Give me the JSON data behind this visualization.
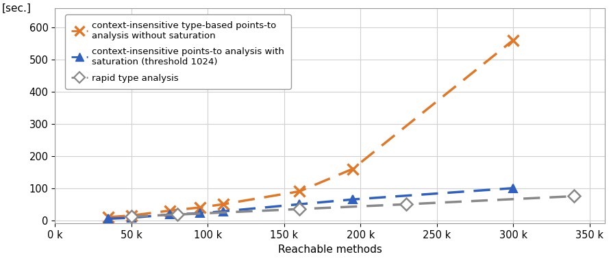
{
  "title": "",
  "xlabel": "Reachable methods",
  "ylabel": "[sec.]",
  "xlim": [
    0,
    360000
  ],
  "ylim": [
    -10,
    660
  ],
  "xticks": [
    0,
    50000,
    100000,
    150000,
    200000,
    250000,
    300000,
    350000
  ],
  "xtick_labels": [
    "0 k",
    "50 k",
    "100 k",
    "150 k",
    "200 k",
    "250 k",
    "300 k",
    "350 k"
  ],
  "yticks": [
    0,
    100,
    200,
    300,
    400,
    500,
    600
  ],
  "series_orange_x": [
    35000,
    50000,
    75000,
    95000,
    110000,
    160000,
    195000,
    300000
  ],
  "series_orange_y": [
    10,
    15,
    30,
    40,
    50,
    90,
    160,
    560
  ],
  "series_blue_x": [
    35000,
    50000,
    75000,
    95000,
    110000,
    160000,
    195000,
    300000
  ],
  "series_blue_y": [
    5,
    8,
    18,
    22,
    28,
    50,
    65,
    100
  ],
  "series_gray_x": [
    50000,
    80000,
    160000,
    230000,
    340000
  ],
  "series_gray_y": [
    12,
    18,
    35,
    50,
    75
  ],
  "color_orange": "#E07828",
  "color_blue": "#3060C0",
  "color_gray": "#888888",
  "legend_labels": [
    "context-insensitive type-based points-to\nanalysis without saturation",
    "context-insensitive points-to analysis with\nsaturation (threshold 1024)",
    "rapid type analysis"
  ],
  "background_color": "#ffffff",
  "grid_color": "#d0d0d0",
  "dash_orange_linewidth": 2.5,
  "dash_blue_linewidth": 2.5,
  "dash_gray_linewidth": 2.5
}
